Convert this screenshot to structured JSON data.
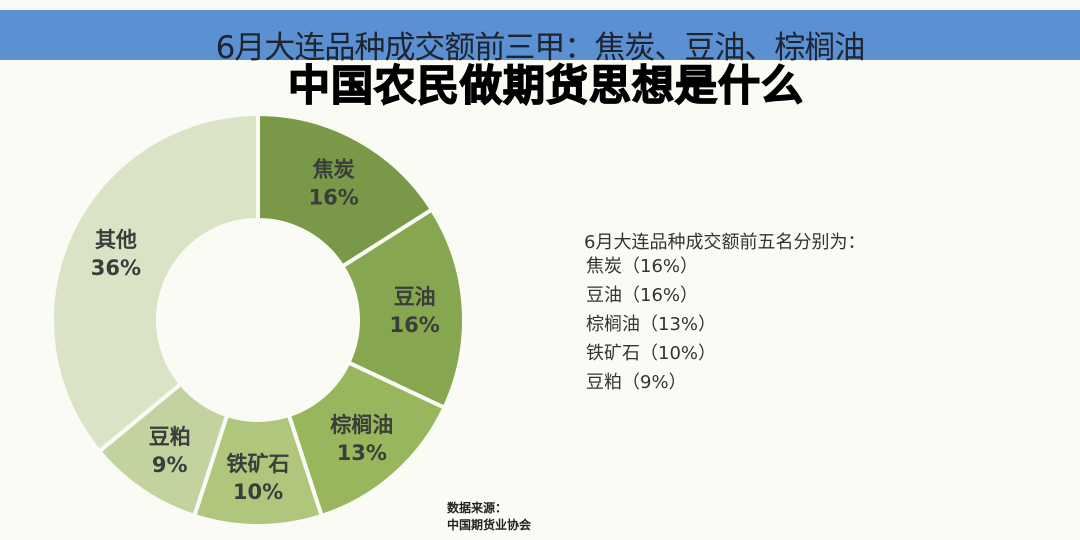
{
  "title": "6月大连品种成交额前三甲：焦炭、豆油、棕榈油",
  "overlay_title": "中国农民做期货思想是什么",
  "list": {
    "heading": "6月大连品种成交额前五名分别为：",
    "items": [
      "焦炭（16%）",
      "豆油（16%）",
      "棕榈油（13%）",
      "铁矿石（10%）",
      "豆粕（9%）"
    ]
  },
  "source": {
    "label": "数据来源：",
    "name": "中国期货业协会"
  },
  "chart_data": {
    "type": "pie",
    "donut": true,
    "categories": [
      "焦炭",
      "豆油",
      "棕榈油",
      "铁矿石",
      "豆粕",
      "其他"
    ],
    "values": [
      16,
      16,
      13,
      10,
      9,
      36
    ],
    "labels": [
      "16%",
      "16%",
      "13%",
      "10%",
      "9%",
      "36%"
    ],
    "colors": [
      "#7a9948",
      "#86a74f",
      "#98b75d",
      "#afc67c",
      "#c3d3a0",
      "#dbe3c6"
    ]
  }
}
